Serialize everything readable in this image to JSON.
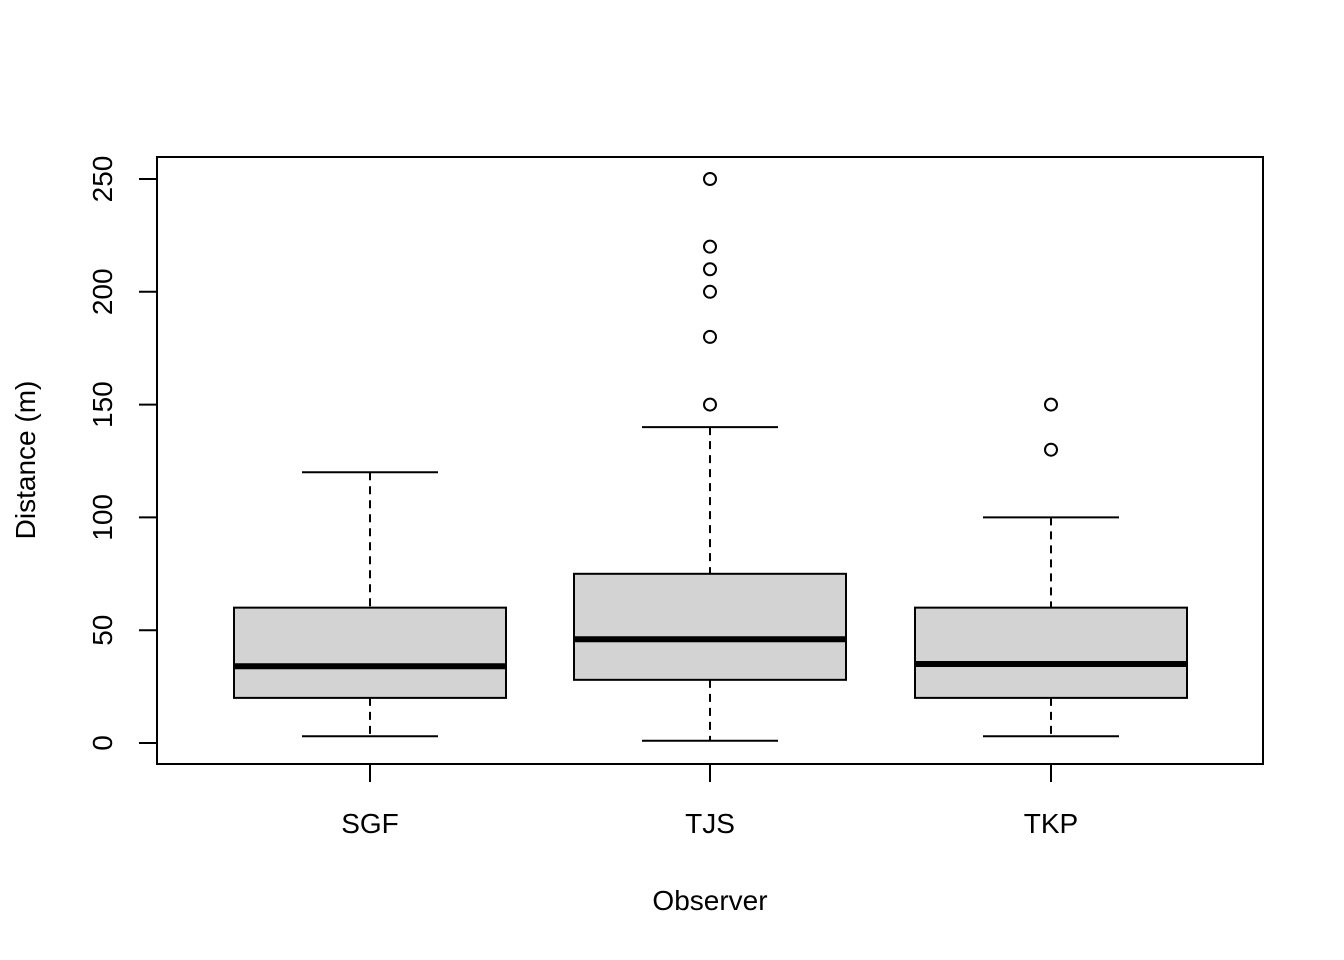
{
  "chart_data": {
    "type": "boxplot",
    "title": "",
    "xlabel": "Observer",
    "ylabel": "Distance (m)",
    "ylim": [
      -10,
      259
    ],
    "y_ticks": [
      0,
      50,
      100,
      150,
      200,
      250
    ],
    "grid": false,
    "categories": [
      "SGF",
      "TJS",
      "TKP"
    ],
    "boxes": [
      {
        "category": "SGF",
        "min": 3,
        "q1": 20,
        "median": 34,
        "q3": 60,
        "max": 120,
        "outliers": []
      },
      {
        "category": "TJS",
        "min": 1,
        "q1": 28,
        "median": 46,
        "q3": 75,
        "max": 140,
        "outliers": [
          150,
          180,
          200,
          210,
          220,
          250
        ]
      },
      {
        "category": "TKP",
        "min": 3,
        "q1": 20,
        "median": 35,
        "q3": 60,
        "max": 100,
        "outliers": [
          130,
          150
        ]
      }
    ],
    "colors": {
      "box_fill": "#d3d3d3",
      "stroke": "#000000"
    }
  }
}
